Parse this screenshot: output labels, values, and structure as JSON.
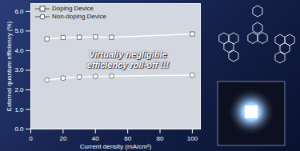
{
  "chart_data": {
    "type": "line",
    "x_label": "Current density (mA/cm²)",
    "y_label": "External quantum efficiency (%)",
    "annotation": "Virtually negligible efficiency roll-off !!!",
    "x": [
      10,
      20,
      30,
      40,
      50,
      100
    ],
    "series": [
      {
        "name": "Doping Device",
        "color": "#ffffff",
        "marker": "square",
        "line_style": "solid",
        "values": [
          4.6,
          4.67,
          4.68,
          4.7,
          4.68,
          4.85
        ]
      },
      {
        "name": "Non-doping Device",
        "color": "#ffffff",
        "marker": "circle",
        "line_style": "solid",
        "values": [
          2.5,
          2.6,
          2.65,
          2.68,
          2.7,
          2.75
        ]
      }
    ],
    "xlim": [
      0,
      105
    ],
    "xticks": [
      0,
      20,
      40,
      60,
      80,
      100
    ],
    "ylim": [
      0,
      6.4
    ],
    "yticks": [
      {
        "value": 0,
        "label": "0.0"
      },
      {
        "value": 1,
        "label": "1.0"
      },
      {
        "value": 2,
        "label": "2.0"
      },
      {
        "value": 3,
        "label": "3.0"
      },
      {
        "value": 4,
        "label": "4.0"
      },
      {
        "value": 5,
        "label": "5.0"
      },
      {
        "value": 6,
        "label": "6.0"
      }
    ],
    "grid": false,
    "legend": "top-left"
  }
}
